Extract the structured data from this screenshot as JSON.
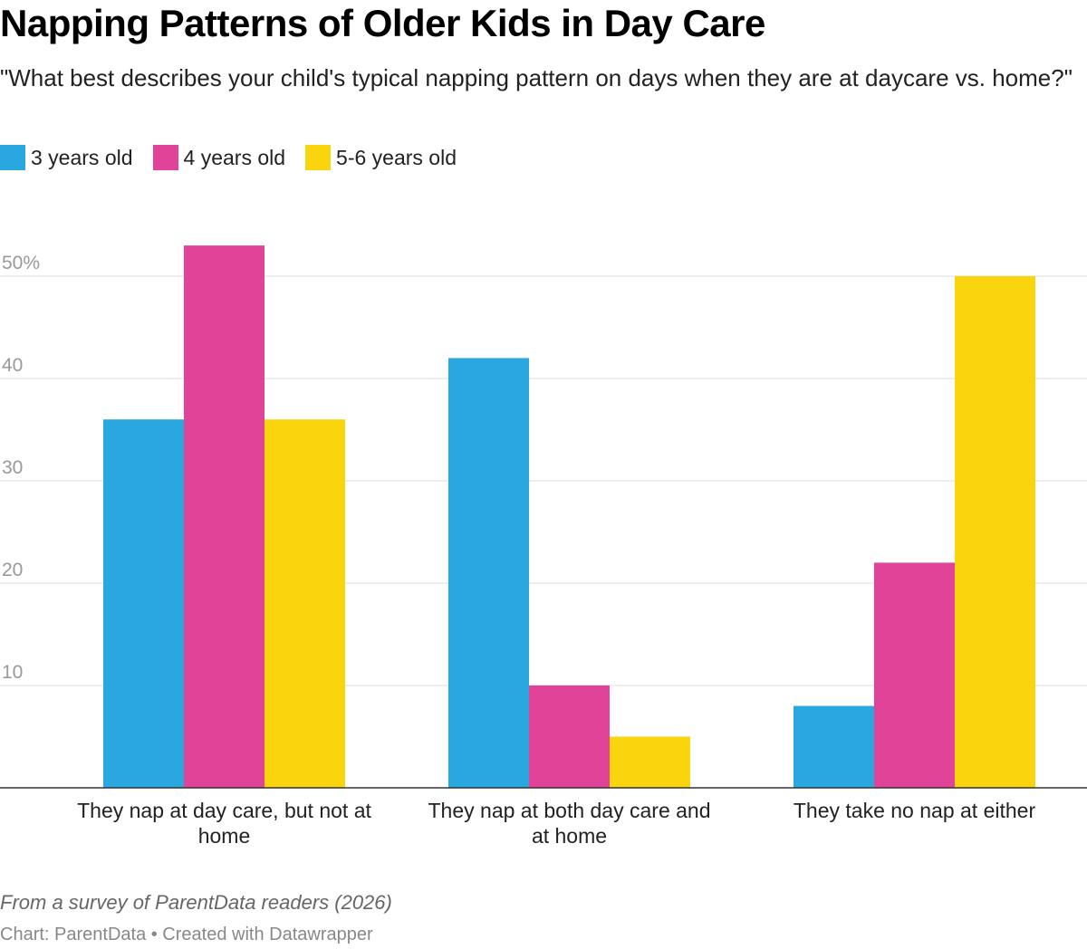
{
  "title": "Napping Patterns of Older Kids in Day Care",
  "subtitle": "\"What best describes your child's typical napping pattern on days when they are at daycare vs. home?\"",
  "notes": "From a survey of ParentData readers (2026)",
  "credit": "Chart: ParentData • Created with Datawrapper",
  "chart_data": {
    "type": "bar",
    "categories": [
      [
        "They nap at day care, but not at",
        "home"
      ],
      [
        "They nap at both day care and",
        "at home"
      ],
      [
        "They take no nap at either"
      ]
    ],
    "series": [
      {
        "name": "3 years old",
        "color": "#29a8e0",
        "values": [
          36,
          42,
          8
        ]
      },
      {
        "name": "4 years old",
        "color": "#e04398",
        "values": [
          53,
          10,
          22
        ]
      },
      {
        "name": "5-6 years old",
        "color": "#fad40d",
        "values": [
          36,
          5,
          50
        ]
      }
    ],
    "yticks": [
      "",
      "10",
      "20",
      "30",
      "40",
      "50%"
    ],
    "ylim": [
      0,
      55
    ],
    "grid": true,
    "legend": "top-left"
  }
}
